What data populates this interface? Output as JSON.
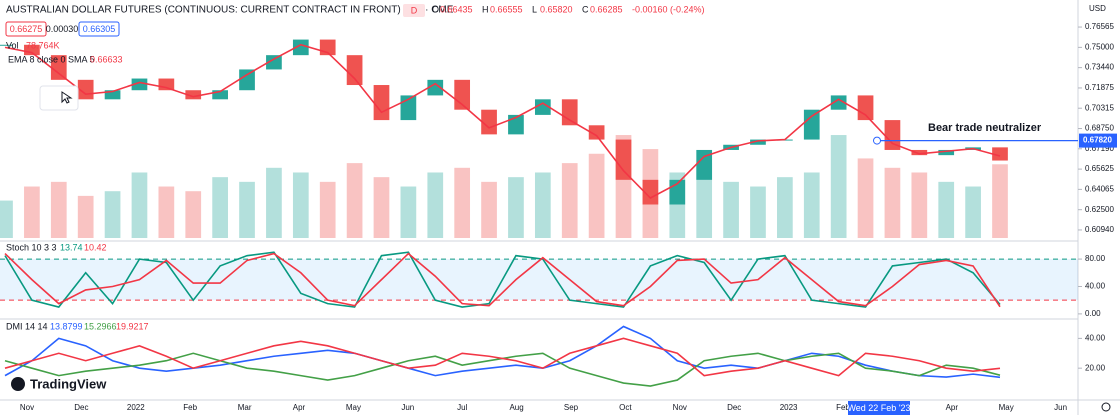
{
  "header": {
    "title": "AUSTRALIAN DOLLAR FUTURES (CONTINUOUS: CURRENT CONTRACT IN FRONT) · 1D · CME",
    "badge": "D",
    "ohlc": [
      {
        "key": "O",
        "value": "0.66435"
      },
      {
        "key": "H",
        "value": "0.66555"
      },
      {
        "key": "L",
        "value": "0.65820"
      },
      {
        "key": "C",
        "value": "0.66285"
      }
    ],
    "change": "-0.00160 (-0.24%)",
    "bid": "0.66275",
    "spread": "0.00030",
    "ask": "0.66305",
    "currency": "USD"
  },
  "legend": {
    "vol_name": "Vol",
    "vol_value": "78.764K",
    "ema_name": "EMA 8 close 0 SMA 5",
    "ema_value": "0.66633"
  },
  "annotation": "Bear trade neutralizer",
  "hline": {
    "value": 0.6782,
    "label": "0.67820"
  },
  "crosshair_date": "Wed 22 Feb '23",
  "brand": "TradingView",
  "time_axis": [
    "Nov",
    "Dec",
    "2022",
    "Feb",
    "Mar",
    "Apr",
    "May",
    "Jun",
    "Jul",
    "Aug",
    "Sep",
    "Oct",
    "Nov",
    "Dec",
    "2023",
    "Feb",
    "Mar",
    "Apr",
    "May",
    "Jun"
  ],
  "chart_data": [
    {
      "type": "candle",
      "ylim": [
        0.6032,
        0.7834
      ],
      "yticks": [
        {
          "value": 0.76565,
          "label": "0.76565"
        },
        {
          "value": 0.75,
          "label": "0.75000"
        },
        {
          "value": 0.7344,
          "label": "0.73440"
        },
        {
          "value": 0.71875,
          "label": "0.71875"
        },
        {
          "value": 0.70315,
          "label": "0.70315"
        },
        {
          "value": 0.6875,
          "label": "0.68750"
        },
        {
          "value": 0.6719,
          "label": "0.67190"
        },
        {
          "value": 0.65625,
          "label": "0.65625"
        },
        {
          "value": 0.64065,
          "label": "0.64065"
        },
        {
          "value": 0.625,
          "label": "0.62500"
        },
        {
          "value": 0.6094,
          "label": "0.60940"
        }
      ],
      "close": [
        0.752,
        0.744,
        0.725,
        0.71,
        0.717,
        0.726,
        0.717,
        0.71,
        0.717,
        0.733,
        0.744,
        0.756,
        0.744,
        0.721,
        0.694,
        0.713,
        0.725,
        0.702,
        0.683,
        0.698,
        0.71,
        0.69,
        0.679,
        0.648,
        0.629,
        0.648,
        0.671,
        0.675,
        0.679,
        0.679,
        0.702,
        0.713,
        0.694,
        0.671,
        0.667,
        0.671,
        0.673,
        0.66285
      ],
      "ema": {
        "color": "#f23645",
        "values": [
          0.75,
          0.746,
          0.73,
          0.714,
          0.716,
          0.723,
          0.719,
          0.712,
          0.716,
          0.729,
          0.741,
          0.752,
          0.746,
          0.726,
          0.7,
          0.71,
          0.722,
          0.706,
          0.688,
          0.696,
          0.707,
          0.694,
          0.682,
          0.655,
          0.634,
          0.645,
          0.666,
          0.673,
          0.678,
          0.679,
          0.697,
          0.71,
          0.698,
          0.676,
          0.668,
          0.67,
          0.672,
          0.66633
        ]
      },
      "volume": {
        "vlim": [
          0,
          250
        ],
        "values": [
          40,
          55,
          60,
          45,
          50,
          70,
          55,
          50,
          65,
          60,
          75,
          70,
          60,
          80,
          65,
          55,
          70,
          75,
          60,
          65,
          70,
          80,
          90,
          110,
          95,
          70,
          80,
          60,
          55,
          65,
          70,
          110,
          85,
          75,
          70,
          60,
          55,
          78.764
        ]
      },
      "up_color": "#26a69a",
      "down_color": "#ef5350"
    },
    {
      "type": "line",
      "name": "Stoch 10 3 3",
      "ylim": [
        -6,
        102
      ],
      "yticks": [
        {
          "value": 80,
          "label": "80.00"
        },
        {
          "value": 40,
          "label": "40.00"
        },
        {
          "value": 0,
          "label": "0.00"
        }
      ],
      "band": [
        20,
        80
      ],
      "series": [
        {
          "name": "13.74",
          "color": "#089981",
          "values": [
            85,
            20,
            10,
            60,
            15,
            80,
            75,
            20,
            70,
            85,
            90,
            30,
            15,
            10,
            85,
            90,
            20,
            10,
            15,
            85,
            80,
            20,
            15,
            10,
            70,
            85,
            75,
            20,
            80,
            85,
            20,
            15,
            10,
            70,
            75,
            80,
            60,
            13.74
          ]
        },
        {
          "name": "10.42",
          "color": "#f23645",
          "values": [
            88,
            50,
            15,
            35,
            40,
            50,
            78,
            45,
            45,
            78,
            88,
            60,
            20,
            12,
            50,
            88,
            55,
            15,
            12,
            50,
            82,
            50,
            18,
            12,
            40,
            78,
            80,
            45,
            50,
            82,
            50,
            18,
            12,
            40,
            72,
            78,
            70,
            10.42
          ]
        }
      ]
    },
    {
      "type": "line",
      "name": "DMI 14 14",
      "ylim": [
        -0.7,
        51
      ],
      "yticks": [
        {
          "value": 40,
          "label": "40.00"
        },
        {
          "value": 20,
          "label": "20.00"
        }
      ],
      "series": [
        {
          "name": "13.8799",
          "color": "#2962ff",
          "values": [
            15,
            25,
            40,
            35,
            25,
            20,
            18,
            20,
            22,
            25,
            28,
            30,
            32,
            30,
            25,
            20,
            15,
            18,
            20,
            22,
            20,
            25,
            35,
            48,
            40,
            25,
            20,
            22,
            20,
            25,
            30,
            28,
            22,
            18,
            15,
            14,
            16,
            13.8799
          ]
        },
        {
          "name": "15.2966",
          "color": "#43a047",
          "values": [
            25,
            20,
            15,
            18,
            20,
            22,
            25,
            30,
            25,
            20,
            18,
            15,
            12,
            15,
            20,
            25,
            28,
            22,
            25,
            28,
            30,
            20,
            15,
            10,
            8,
            12,
            25,
            28,
            30,
            25,
            28,
            30,
            20,
            18,
            15,
            22,
            20,
            15.2966
          ]
        },
        {
          "name": "19.9217",
          "color": "#f23645",
          "values": [
            20,
            25,
            30,
            25,
            30,
            35,
            28,
            20,
            25,
            30,
            35,
            38,
            35,
            30,
            25,
            20,
            22,
            30,
            28,
            25,
            20,
            30,
            35,
            40,
            35,
            30,
            15,
            18,
            20,
            25,
            20,
            15,
            30,
            28,
            25,
            20,
            18,
            19.9217
          ]
        }
      ]
    }
  ]
}
